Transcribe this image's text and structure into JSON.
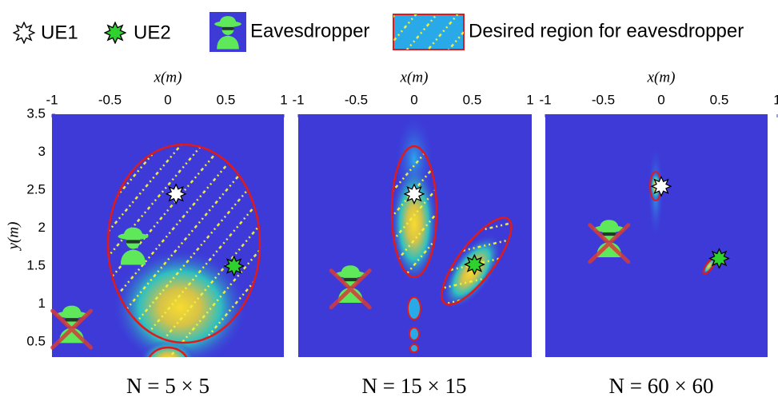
{
  "legend": [
    "UE1",
    "UE2",
    "Eavesdropper",
    "Desired region for eavesdropper"
  ],
  "chart_data": [
    {
      "type": "scatter",
      "title": "N = 5 × 5",
      "xlabel": "x(m)",
      "ylabel": "y(m)",
      "xlim": [
        -1,
        1
      ],
      "ylim": [
        0.3,
        3.5
      ],
      "xticks": [
        -1,
        -0.5,
        0,
        0.5,
        1
      ],
      "yticks": [
        0.5,
        1,
        1.5,
        2,
        2.5,
        3,
        3.5
      ],
      "ue1": [
        0.07,
        2.45
      ],
      "ue2": [
        0.57,
        1.5
      ],
      "eavesdroppers": [
        {
          "x": -0.3,
          "y": 1.75,
          "crossed": false
        },
        {
          "x": -0.83,
          "y": 0.72,
          "crossed": true
        }
      ]
    },
    {
      "type": "scatter",
      "title": "N = 15 × 15",
      "xlabel": "x(m)",
      "xlim": [
        -1,
        1
      ],
      "ylim": [
        0.3,
        3.5
      ],
      "xticks": [
        -1,
        -0.5,
        0,
        0.5,
        1
      ],
      "ue1": [
        0,
        2.45
      ],
      "ue2": [
        0.52,
        1.52
      ],
      "eavesdroppers": [
        {
          "x": -0.55,
          "y": 1.25,
          "crossed": true
        }
      ]
    },
    {
      "type": "scatter",
      "title": "N = 60 × 60",
      "xlabel": "x(m)",
      "xlim": [
        -1,
        1
      ],
      "ylim": [
        0.3,
        3.5
      ],
      "xticks": [
        -1,
        -0.5,
        0,
        0.5,
        1
      ],
      "ue1": [
        0,
        2.55
      ],
      "ue2": [
        0.5,
        1.6
      ],
      "eavesdroppers": [
        {
          "x": -0.45,
          "y": 1.85,
          "crossed": true
        }
      ]
    }
  ]
}
